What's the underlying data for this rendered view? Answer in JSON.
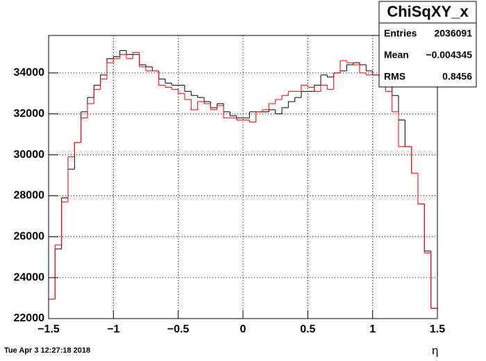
{
  "chart_data": {
    "type": "histogram",
    "xlabel": "η",
    "footer": "Tue Apr  3 12:27:18 2018",
    "bins": [
      -1.5,
      -1.45,
      -1.4,
      -1.35,
      -1.3,
      -1.25,
      -1.2,
      -1.15,
      -1.1,
      -1.05,
      -1,
      -0.95,
      -0.9,
      -0.85,
      -0.8,
      -0.75,
      -0.7,
      -0.65,
      -0.6,
      -0.55,
      -0.5,
      -0.45,
      -0.4,
      -0.35,
      -0.3,
      -0.25,
      -0.2,
      -0.15,
      -0.1,
      -0.05,
      0,
      0.05,
      0.1,
      0.15,
      0.2,
      0.25,
      0.3,
      0.35,
      0.4,
      0.45,
      0.5,
      0.55,
      0.6,
      0.65,
      0.7,
      0.75,
      0.8,
      0.85,
      0.9,
      0.95,
      1,
      1.05,
      1.1,
      1.15,
      1.2,
      1.25,
      1.3,
      1.35,
      1.4,
      1.45,
      1.5
    ],
    "series": [
      {
        "color": "#000000",
        "values": [
          22950,
          25400,
          27900,
          29300,
          30600,
          32100,
          32800,
          33400,
          33900,
          34700,
          34800,
          35100,
          34900,
          34900,
          34400,
          34300,
          34100,
          33700,
          33500,
          33400,
          33400,
          33100,
          32900,
          32800,
          32600,
          32300,
          32500,
          32100,
          31900,
          31800,
          31800,
          32100,
          32100,
          32100,
          32200,
          32000,
          32300,
          32600,
          32800,
          33100,
          33100,
          33400,
          33900,
          33800,
          34000,
          34100,
          34400,
          34500,
          34400,
          34100,
          33900,
          33900,
          33400,
          32900,
          31700,
          30400,
          29100,
          27600,
          25300,
          22500
        ]
      },
      {
        "color": "#ff0000",
        "values": [
          22950,
          25600,
          27700,
          29900,
          30600,
          31800,
          32500,
          33200,
          33700,
          34500,
          34700,
          34900,
          34700,
          35000,
          34300,
          34100,
          34100,
          33400,
          33300,
          33200,
          33000,
          32700,
          32200,
          32600,
          32500,
          32200,
          32400,
          31800,
          31800,
          31700,
          31700,
          31600,
          32100,
          32200,
          32500,
          32700,
          32900,
          33100,
          33100,
          33400,
          33300,
          33100,
          33400,
          33200,
          34000,
          34600,
          34500,
          34400,
          34000,
          33900,
          33900,
          33500,
          33100,
          32100,
          30400,
          30400,
          29100,
          27600,
          25200,
          22500
        ]
      }
    ],
    "xlim": [
      -1.5,
      1.5
    ],
    "ylim": [
      22000,
      35830
    ],
    "xticks": [
      {
        "value": -1.5,
        "label": "−1.5"
      },
      {
        "value": -1,
        "label": "−1"
      },
      {
        "value": -0.5,
        "label": "−0.5"
      },
      0,
      0.5,
      1,
      1.5
    ],
    "yticks": [
      22000,
      24000,
      26000,
      28000,
      30000,
      32000,
      34000
    ],
    "grid": true,
    "stats": {
      "title": "ChiSqXY_x",
      "rows": [
        [
          "Entries",
          2036091
        ],
        [
          "Mean",
          "−0.004345"
        ],
        [
          "RMS",
          0.8456
        ]
      ]
    }
  }
}
